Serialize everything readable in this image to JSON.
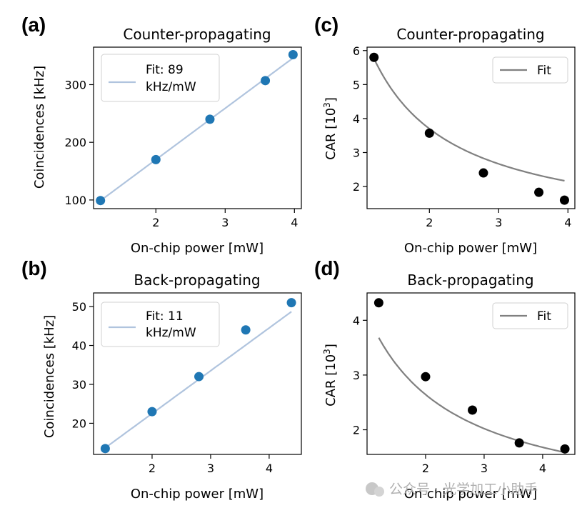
{
  "panels": [
    {
      "label": "(a)",
      "title": "Counter-propagating",
      "xlabel": "On-chip power [mW]",
      "ylabel": "Coinciden­ces [kHz]",
      "legend": [
        "Fit: 89",
        "kHz/mW"
      ]
    },
    {
      "label": "(b)",
      "title": "Back-propagating",
      "xlabel": "On-chip power [mW]",
      "ylabel": "Coincidences [kHz]",
      "legend": [
        "Fit: 11",
        "kHz/mW"
      ]
    },
    {
      "label": "(c)",
      "title": "Counter-propagating",
      "xlabel": "On-chip power [mW]",
      "ylabel_main": "CAR [10",
      "ylabel_sup": "3",
      "ylabel_end": "]",
      "legend": [
        "Fit"
      ]
    },
    {
      "label": "(d)",
      "title": "Back-propagating",
      "xlabel": "On-chip power [mW]",
      "ylabel_main": "CAR [10",
      "ylabel_sup": "3",
      "ylabel_end": "]",
      "legend": [
        "Fit"
      ]
    }
  ],
  "watermark": "公众号 · 光学加工小助手",
  "colors": {
    "scatter_blue": "#1f77b4",
    "fit_blue": "#b0c4de",
    "scatter_black": "#000000",
    "fit_gray": "#808080"
  },
  "chart_data": [
    {
      "type": "scatter",
      "title": "Counter-propagating",
      "xlabel": "On-chip power [mW]",
      "ylabel": "Coincidences [kHz]",
      "x": [
        1.2,
        2.0,
        2.78,
        3.58,
        3.98
      ],
      "y": [
        99,
        170,
        240,
        307,
        352
      ],
      "fit": {
        "type": "linear",
        "slope": 89,
        "intercept": -8,
        "label": "Fit: 89 kHz/mW"
      },
      "xlim": [
        1.1,
        4.1
      ],
      "ylim": [
        85,
        365
      ],
      "xticks": [
        2,
        3,
        4
      ],
      "yticks": [
        100,
        200,
        300
      ],
      "legend_position": "top-left"
    },
    {
      "type": "scatter",
      "title": "Back-propagating",
      "xlabel": "On-chip power [mW]",
      "ylabel": "Coincidences [kHz]",
      "x": [
        1.2,
        2.0,
        2.8,
        3.6,
        4.38
      ],
      "y": [
        13.5,
        23,
        32,
        44,
        51
      ],
      "fit": {
        "type": "linear",
        "slope": 11,
        "intercept": 0.5,
        "label": "Fit: 11 kHz/mW"
      },
      "xlim": [
        1.0,
        4.55
      ],
      "ylim": [
        12.0,
        53.5
      ],
      "xticks": [
        2,
        3,
        4
      ],
      "yticks": [
        20,
        30,
        40,
        50
      ],
      "legend_position": "top-left"
    },
    {
      "type": "scatter",
      "title": "Counter-propagating",
      "xlabel": "On-chip power [mW]",
      "ylabel": "CAR [10^3]",
      "x": [
        1.2,
        2.0,
        2.78,
        3.58,
        3.95
      ],
      "y": [
        5.8,
        3.57,
        2.4,
        1.83,
        1.6
      ],
      "fit": {
        "type": "inverse",
        "a": 6.2,
        "label": "Fit"
      },
      "xlim": [
        1.1,
        4.1
      ],
      "ylim": [
        1.35,
        6.1
      ],
      "xticks": [
        2,
        3,
        4
      ],
      "yticks": [
        2,
        3,
        4,
        5,
        6
      ],
      "legend_position": "top-right"
    },
    {
      "type": "scatter",
      "title": "Back-propagating",
      "xlabel": "On-chip power [mW]",
      "ylabel": "CAR [10^3]",
      "x": [
        1.2,
        2.0,
        2.8,
        3.6,
        4.38
      ],
      "y": [
        4.32,
        2.97,
        2.36,
        1.76,
        1.65
      ],
      "fit": {
        "type": "inverse",
        "a": 5.25,
        "b": 0.45,
        "label": "Fit"
      },
      "xlim": [
        1.0,
        4.55
      ],
      "ylim": [
        1.55,
        4.5
      ],
      "xticks": [
        2,
        3,
        4
      ],
      "yticks": [
        2,
        3,
        4
      ],
      "legend_position": "top-right"
    }
  ]
}
